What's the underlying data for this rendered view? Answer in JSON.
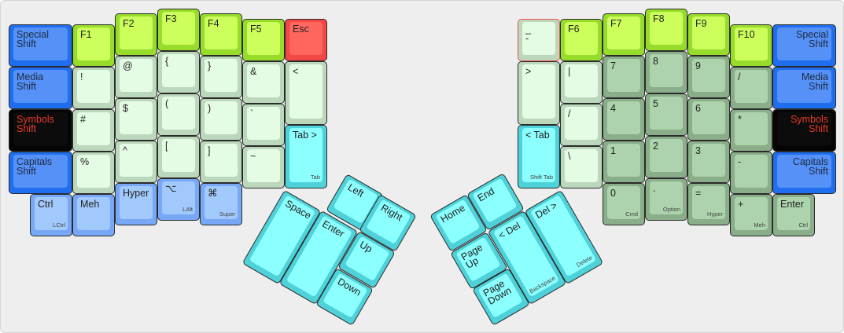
{
  "palette": {
    "blue": {
      "outer": "#1f6ef0",
      "inner": "#5591f7",
      "text": "#1e2a40"
    },
    "black": {
      "outer": "#050505",
      "inner": "#0c0c0c",
      "text": "#e8392a"
    },
    "fkey": {
      "outer": "#97dc2a",
      "inner": "#ccff5c",
      "text": "#222222"
    },
    "esc": {
      "outer": "#f54646",
      "inner": "#ff675e",
      "text": "#222222"
    },
    "sym": {
      "outer": "#bcd8bc",
      "inner": "#e4fbe4",
      "text": "#222222"
    },
    "num": {
      "outer": "#8aae8a",
      "inner": "#acd3ac",
      "text": "#222222"
    },
    "cyan": {
      "outer": "#4fd1da",
      "inner": "#8cffff",
      "text": "#222222"
    },
    "mod": {
      "outer": "#78a8f5",
      "inner": "#a2c9fb",
      "text": "#222222"
    }
  },
  "keys": [
    {
      "label": "Special\nShift",
      "color": "blue"
    },
    {
      "label": "Media\nShift",
      "color": "blue"
    },
    {
      "label": "Symbols\nShift",
      "color": "black"
    },
    {
      "label": "Capitals\nShift",
      "color": "blue"
    },
    {
      "label": "Ctrl",
      "sub": "LCtrl",
      "color": "mod"
    },
    {
      "label": "F1",
      "color": "fkey"
    },
    {
      "label": "!",
      "color": "sym"
    },
    {
      "label": "#",
      "color": "sym"
    },
    {
      "label": "%",
      "color": "sym"
    },
    {
      "label": "Meh",
      "color": "mod"
    },
    {
      "label": "F2",
      "color": "fkey"
    },
    {
      "label": "@",
      "color": "sym"
    },
    {
      "label": "$",
      "color": "sym"
    },
    {
      "label": "^",
      "color": "sym"
    },
    {
      "label": "Hyper",
      "color": "mod"
    },
    {
      "label": "F3",
      "color": "fkey"
    },
    {
      "label": "{",
      "color": "sym"
    },
    {
      "label": "(",
      "color": "sym"
    },
    {
      "label": "[",
      "color": "sym"
    },
    {
      "label": "⌥",
      "sub": "LAlt",
      "color": "mod"
    },
    {
      "label": "F4",
      "color": "fkey"
    },
    {
      "label": "}",
      "color": "sym"
    },
    {
      "label": ")",
      "color": "sym"
    },
    {
      "label": "]",
      "color": "sym"
    },
    {
      "label": "⌘",
      "sub": "Super",
      "color": "mod"
    },
    {
      "label": "F5",
      "color": "fkey"
    },
    {
      "label": "&",
      "color": "sym"
    },
    {
      "label": "`",
      "color": "sym"
    },
    {
      "label": "~",
      "color": "sym"
    },
    {
      "label": "Esc",
      "color": "esc"
    },
    {
      "label": "<",
      "color": "sym"
    },
    {
      "label": "Tab >",
      "sub": "Tab",
      "color": "cyan"
    },
    {
      "label": "Space",
      "color": "cyan"
    },
    {
      "label": "Enter",
      "color": "cyan"
    },
    {
      "label": "Left",
      "color": "cyan"
    },
    {
      "label": "Right",
      "color": "cyan"
    },
    {
      "label": "Up",
      "color": "cyan"
    },
    {
      "label": "Down",
      "color": "cyan"
    },
    {
      "label": "Home",
      "color": "cyan"
    },
    {
      "label": "End",
      "color": "cyan"
    },
    {
      "label": "Page\nUp",
      "color": "cyan"
    },
    {
      "label": "Page\nDown",
      "color": "cyan"
    },
    {
      "label": "< Del",
      "sub": "Backspace",
      "color": "cyan"
    },
    {
      "label": "Del >",
      "sub": "Delete",
      "color": "cyan"
    },
    {
      "label": "_\n-",
      "color": "sym",
      "highlight": "#f05050"
    },
    {
      "label": ">",
      "color": "sym"
    },
    {
      "label": "< Tab",
      "sub": "Shift Tab",
      "color": "cyan"
    },
    {
      "label": "F6",
      "color": "fkey"
    },
    {
      "label": "|",
      "color": "sym"
    },
    {
      "label": "/",
      "color": "sym"
    },
    {
      "label": "\\",
      "color": "sym"
    },
    {
      "label": "F7",
      "color": "fkey"
    },
    {
      "label": "7",
      "color": "num"
    },
    {
      "label": "4",
      "color": "num"
    },
    {
      "label": "1",
      "color": "num"
    },
    {
      "label": "0",
      "sub": "Cmd",
      "color": "num"
    },
    {
      "label": "F8",
      "color": "fkey"
    },
    {
      "label": "8",
      "color": "num"
    },
    {
      "label": "5",
      "color": "num"
    },
    {
      "label": "2",
      "color": "num"
    },
    {
      "label": ".",
      "sub": "Option",
      "color": "num"
    },
    {
      "label": "F9",
      "color": "fkey"
    },
    {
      "label": "9",
      "color": "num"
    },
    {
      "label": "6",
      "color": "num"
    },
    {
      "label": "3",
      "color": "num"
    },
    {
      "label": "=",
      "sub": "Hyper",
      "color": "num"
    },
    {
      "label": "F10",
      "color": "fkey"
    },
    {
      "label": "/",
      "color": "num"
    },
    {
      "label": "*",
      "color": "num"
    },
    {
      "label": "-",
      "color": "num"
    },
    {
      "label": "+",
      "sub": "Meh",
      "color": "num"
    },
    {
      "label": "Special\nShift",
      "color": "blue",
      "align": "right"
    },
    {
      "label": "Media\nShift",
      "color": "blue",
      "align": "right"
    },
    {
      "label": "Symbols\nShift",
      "color": "black",
      "align": "right"
    },
    {
      "label": "Capitals\nShift",
      "color": "blue",
      "align": "right"
    },
    {
      "label": "Enter",
      "sub": "Ctrl",
      "color": "num"
    }
  ]
}
